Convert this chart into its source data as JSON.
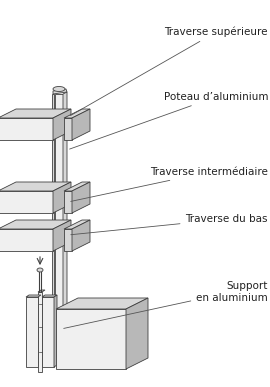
{
  "bg_color": "#ffffff",
  "line_color": "#404040",
  "face_light": "#f0f0f0",
  "face_mid": "#d8d8d8",
  "face_dark": "#b8b8b8",
  "labels": {
    "traverse_sup": "Traverse supérieure",
    "poteau": "Poteau d’aluminium",
    "traverse_int": "Traverse intermédiaire",
    "traverse_bas": "Traverse du bas",
    "support": "Support\nen aluminium"
  },
  "fontsize": 7.5
}
